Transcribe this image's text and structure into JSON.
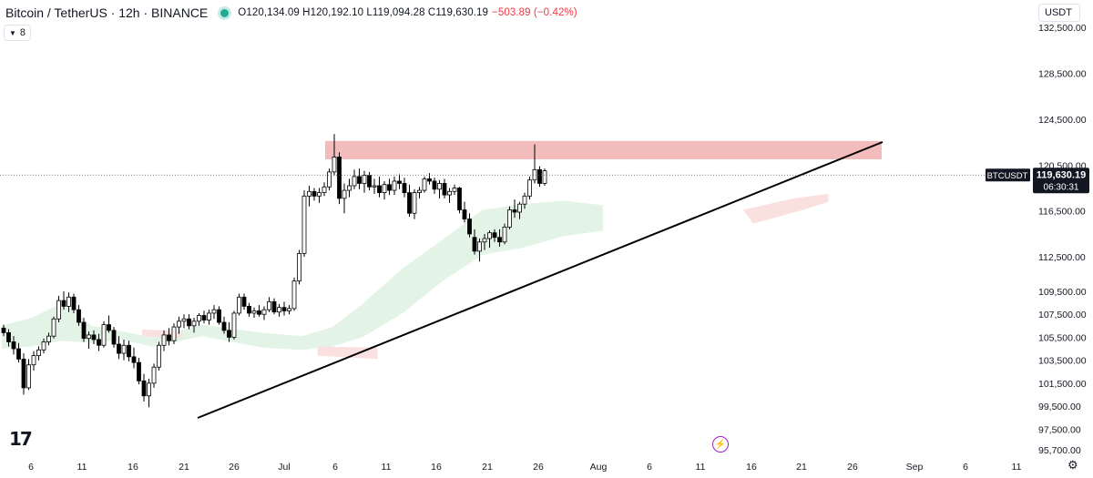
{
  "header": {
    "symbol_title": "Bitcoin / TetherUS · 12h · BINANCE",
    "ohlc": "O120,134.09 H120,192.10 L119,094.28 C119,630.19",
    "change": "−503.89 (−0.42%)",
    "live_dot_color": "#22ab94"
  },
  "indicator_pill": {
    "label": "8"
  },
  "currency_button": {
    "label": "USDT"
  },
  "price_label": {
    "ticker": "BTCUSDT",
    "price": "119,630.19",
    "countdown": "06:30:31"
  },
  "icons": {
    "logo": "tradingview-logo",
    "bolt": "lightning-icon",
    "settings": "gear-icon"
  },
  "colors": {
    "up_candle": "#ffffff",
    "down_candle": "#000000",
    "resistance_zone": "#f2bcbc",
    "cloud_bull": "#e3f3e6",
    "cloud_bear": "#fbe0e0",
    "trendline": "#000000"
  },
  "chart_data": {
    "type": "candlestick",
    "symbol": "BTCUSDT",
    "interval": "12h",
    "ylim": [
      95700,
      132500
    ],
    "y_ticks": [
      "132,500.00",
      "128,500.00",
      "124,500.00",
      "120,500.00",
      "116,500.00",
      "112,500.00",
      "109,500.00",
      "107,500.00",
      "105,500.00",
      "103,500.00",
      "101,500.00",
      "99,500.00",
      "97,500.00",
      "95,700.00"
    ],
    "x_ticks": [
      "6",
      "11",
      "16",
      "21",
      "26",
      "Jul",
      "6",
      "11",
      "16",
      "21",
      "26",
      "Aug",
      "6",
      "11",
      "16",
      "21",
      "26",
      "Sep",
      "6",
      "11"
    ],
    "current_price": 119630.19,
    "candles": [
      [
        106300,
        106600,
        105600,
        105900
      ],
      [
        105900,
        106200,
        104700,
        105100
      ],
      [
        105100,
        105600,
        104000,
        104500
      ],
      [
        104500,
        105000,
        103300,
        103600
      ],
      [
        103600,
        104100,
        100500,
        101100
      ],
      [
        101100,
        103600,
        100900,
        103100
      ],
      [
        103100,
        104300,
        102600,
        103900
      ],
      [
        103900,
        104700,
        103500,
        104400
      ],
      [
        104400,
        105400,
        104100,
        105100
      ],
      [
        105100,
        105900,
        104800,
        105600
      ],
      [
        105600,
        107300,
        105400,
        107100
      ],
      [
        107100,
        109100,
        106800,
        108700
      ],
      [
        108700,
        109500,
        107900,
        108200
      ],
      [
        108200,
        109400,
        107700,
        109000
      ],
      [
        109000,
        109300,
        107600,
        107900
      ],
      [
        107900,
        108300,
        106500,
        106800
      ],
      [
        106800,
        107200,
        105100,
        105400
      ],
      [
        105400,
        106000,
        104500,
        105700
      ],
      [
        105700,
        106100,
        104900,
        105300
      ],
      [
        105300,
        105800,
        104300,
        104800
      ],
      [
        104800,
        106900,
        104600,
        106600
      ],
      [
        106600,
        107400,
        105900,
        106100
      ],
      [
        106100,
        106400,
        104600,
        104900
      ],
      [
        104900,
        105600,
        103600,
        104100
      ],
      [
        104100,
        105300,
        103500,
        104800
      ],
      [
        104800,
        105200,
        103400,
        103800
      ],
      [
        103800,
        104600,
        102800,
        103300
      ],
      [
        103300,
        103700,
        101400,
        101700
      ],
      [
        101700,
        102300,
        99900,
        100400
      ],
      [
        100400,
        101900,
        99400,
        101500
      ],
      [
        101500,
        103200,
        101100,
        102900
      ],
      [
        102900,
        105100,
        102600,
        104800
      ],
      [
        104800,
        106100,
        104300,
        105700
      ],
      [
        105700,
        106300,
        104800,
        105200
      ],
      [
        105200,
        106700,
        104900,
        106400
      ],
      [
        106400,
        107300,
        105800,
        106900
      ],
      [
        106900,
        107500,
        106300,
        107100
      ],
      [
        107100,
        107500,
        106200,
        106500
      ],
      [
        106500,
        107200,
        105900,
        106900
      ],
      [
        106900,
        107600,
        106500,
        107400
      ],
      [
        107400,
        107800,
        106700,
        107000
      ],
      [
        107000,
        107900,
        106600,
        107600
      ],
      [
        107600,
        108300,
        107100,
        107900
      ],
      [
        107900,
        108200,
        106600,
        106800
      ],
      [
        106800,
        107300,
        105800,
        106100
      ],
      [
        106100,
        106800,
        105100,
        105500
      ],
      [
        105500,
        107800,
        105300,
        107600
      ],
      [
        107600,
        109300,
        107400,
        109000
      ],
      [
        109000,
        109300,
        107900,
        108200
      ],
      [
        108200,
        108500,
        107300,
        107600
      ],
      [
        107600,
        108100,
        107200,
        107800
      ],
      [
        107800,
        108300,
        107300,
        107500
      ],
      [
        107500,
        108200,
        107000,
        107900
      ],
      [
        107900,
        109000,
        107700,
        108600
      ],
      [
        108600,
        108900,
        107500,
        107700
      ],
      [
        107700,
        108400,
        107300,
        108100
      ],
      [
        108100,
        108600,
        107400,
        107800
      ],
      [
        107800,
        108300,
        107500,
        108000
      ],
      [
        108000,
        110700,
        107800,
        110400
      ],
      [
        110400,
        113100,
        110100,
        112800
      ],
      [
        112800,
        118300,
        112500,
        117800
      ],
      [
        117800,
        118700,
        116900,
        118200
      ],
      [
        118200,
        118500,
        117400,
        117800
      ],
      [
        117800,
        118500,
        117200,
        118100
      ],
      [
        118100,
        119000,
        117800,
        118600
      ],
      [
        118600,
        120200,
        118300,
        119900
      ],
      [
        119900,
        123200,
        119600,
        121200
      ],
      [
        121200,
        121600,
        117100,
        117600
      ],
      [
        117600,
        118900,
        116300,
        118300
      ],
      [
        118300,
        119300,
        117700,
        118700
      ],
      [
        118700,
        120100,
        118400,
        119500
      ],
      [
        119500,
        120200,
        118400,
        118900
      ],
      [
        118900,
        120000,
        118100,
        119600
      ],
      [
        119600,
        119900,
        118300,
        118600
      ],
      [
        118600,
        119300,
        118000,
        118700
      ],
      [
        118700,
        119500,
        117700,
        118100
      ],
      [
        118100,
        119100,
        117500,
        118800
      ],
      [
        118800,
        119300,
        117900,
        118300
      ],
      [
        118300,
        119500,
        117900,
        119100
      ],
      [
        119100,
        119700,
        118400,
        118900
      ],
      [
        118900,
        119400,
        117700,
        118100
      ],
      [
        118100,
        118800,
        116000,
        116300
      ],
      [
        116300,
        118400,
        115800,
        118100
      ],
      [
        118100,
        118600,
        117600,
        118300
      ],
      [
        118300,
        119500,
        118100,
        119300
      ],
      [
        119300,
        119800,
        118800,
        119100
      ],
      [
        119100,
        119400,
        118000,
        118400
      ],
      [
        118400,
        119200,
        117600,
        118900
      ],
      [
        118900,
        119300,
        117600,
        117900
      ],
      [
        117900,
        118500,
        117200,
        118200
      ],
      [
        118200,
        118800,
        117900,
        118500
      ],
      [
        118500,
        118600,
        116300,
        116600
      ],
      [
        116600,
        117300,
        115500,
        115800
      ],
      [
        115800,
        116300,
        114200,
        114500
      ],
      [
        114200,
        114900,
        112700,
        113000
      ],
      [
        113000,
        114100,
        112100,
        113800
      ],
      [
        113800,
        114500,
        113100,
        114100
      ],
      [
        114100,
        114800,
        113300,
        114600
      ],
      [
        114600,
        114900,
        113800,
        114200
      ],
      [
        114200,
        114900,
        113400,
        113800
      ],
      [
        113800,
        115400,
        113600,
        115100
      ],
      [
        115100,
        116900,
        114900,
        116600
      ],
      [
        116600,
        117500,
        115900,
        116400
      ],
      [
        116400,
        117300,
        115800,
        117100
      ],
      [
        117100,
        118100,
        116700,
        117800
      ],
      [
        117800,
        119500,
        117500,
        119200
      ],
      [
        119200,
        122300,
        118900,
        120100
      ],
      [
        120100,
        120400,
        118600,
        118900
      ],
      [
        118900,
        120200,
        118700,
        120000
      ]
    ],
    "annotations": {
      "resistance_zone": {
        "from_index": 60,
        "to_index": 170,
        "low": 121000,
        "high": 122600
      },
      "trendline": {
        "from_index": 36,
        "from_price": 98300,
        "to_index": 170,
        "to_price": 121000
      }
    }
  }
}
